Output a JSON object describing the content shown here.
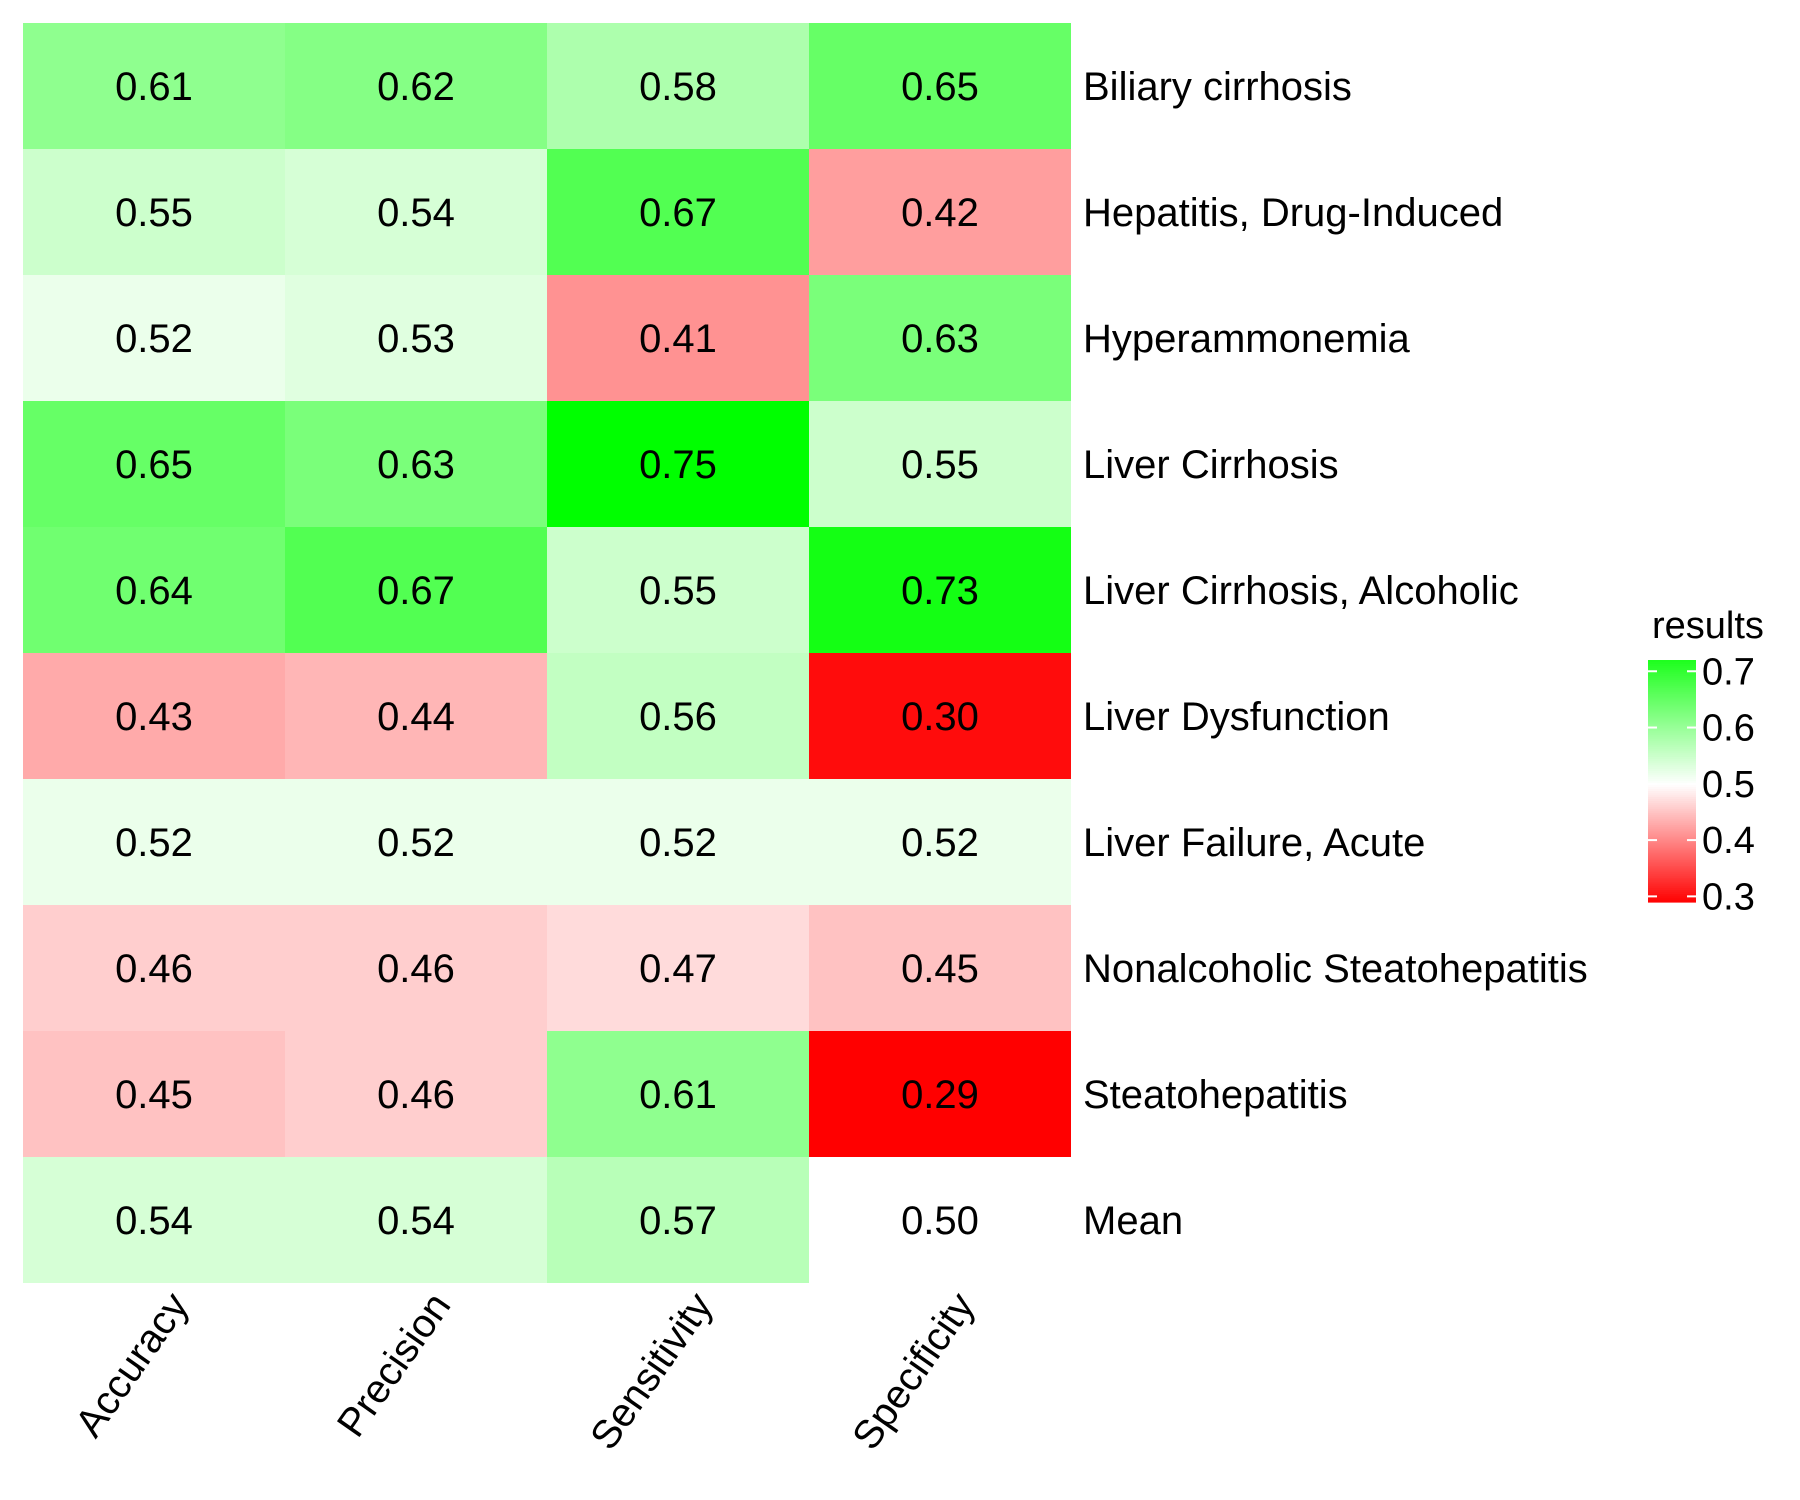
{
  "chart_data": {
    "type": "heatmap",
    "columns": [
      "Accuracy",
      "Precision",
      "Sensitivity",
      "Specificity"
    ],
    "rows": [
      "Biliary cirrhosis",
      "Hepatitis, Drug-Induced",
      "Hyperammonemia",
      "Liver Cirrhosis",
      "Liver Cirrhosis, Alcoholic",
      "Liver Dysfunction",
      "Liver Failure, Acute",
      "Nonalcoholic Steatohepatitis",
      "Steatohepatitis",
      "Mean"
    ],
    "values": [
      [
        0.61,
        0.62,
        0.58,
        0.65
      ],
      [
        0.55,
        0.54,
        0.67,
        0.42
      ],
      [
        0.52,
        0.53,
        0.41,
        0.63
      ],
      [
        0.65,
        0.63,
        0.75,
        0.55
      ],
      [
        0.64,
        0.67,
        0.55,
        0.73
      ],
      [
        0.43,
        0.44,
        0.56,
        0.3
      ],
      [
        0.52,
        0.52,
        0.52,
        0.52
      ],
      [
        0.46,
        0.46,
        0.47,
        0.45
      ],
      [
        0.45,
        0.46,
        0.61,
        0.29
      ],
      [
        0.54,
        0.54,
        0.57,
        0.5
      ]
    ],
    "cell_labels": [
      [
        "0.61",
        "0.62",
        "0.58",
        "0.65"
      ],
      [
        "0.55",
        "0.54",
        "0.67",
        "0.42"
      ],
      [
        "0.52",
        "0.53",
        "0.41",
        "0.63"
      ],
      [
        "0.65",
        "0.63",
        "0.75",
        "0.55"
      ],
      [
        "0.64",
        "0.67",
        "0.55",
        "0.73"
      ],
      [
        "0.43",
        "0.44",
        "0.56",
        "0.30"
      ],
      [
        "0.52",
        "0.52",
        "0.52",
        "0.52"
      ],
      [
        "0.46",
        "0.46",
        "0.47",
        "0.45"
      ],
      [
        "0.45",
        "0.46",
        "0.61",
        "0.29"
      ],
      [
        "0.54",
        "0.54",
        "0.57",
        "0.50"
      ]
    ],
    "color_scale": {
      "low_value": 0.29,
      "mid_value": 0.5,
      "high_value": 0.75,
      "low_color": "#ff0000",
      "mid_color": "#ffffff",
      "high_color": "#00ff00"
    },
    "legend": {
      "title": "results",
      "ticks": [
        "0.7",
        "0.6",
        "0.5",
        "0.4",
        "0.3"
      ],
      "tick_values": [
        0.7,
        0.6,
        0.5,
        0.4,
        0.3
      ],
      "placement": "right"
    }
  }
}
